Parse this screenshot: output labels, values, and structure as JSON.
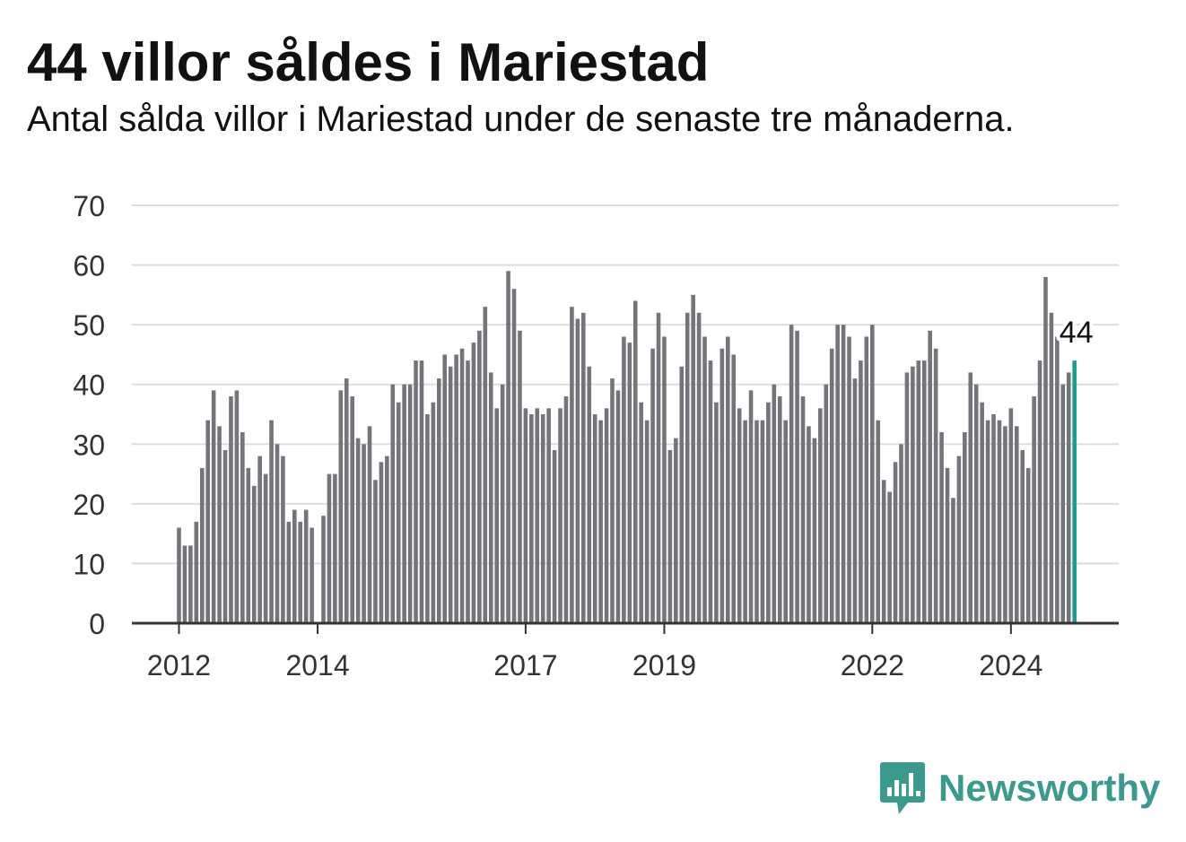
{
  "header": {
    "title": "44 villor såldes i Mariestad",
    "subtitle": "Antal sålda villor i Mariestad under de senaste tre månaderna."
  },
  "brand": {
    "name": "Newsworthy",
    "icon": "newsworthy-bar-chart-icon",
    "color": "#3a9a8e"
  },
  "colors": {
    "bar": "#75747a",
    "highlight": "#1a9e8f",
    "grid": "#dddddd",
    "axis": "#333333"
  },
  "chart_data": {
    "type": "bar",
    "title": "44 villor såldes i Mariestad",
    "subtitle": "Antal sålda villor i Mariestad under de senaste tre månaderna.",
    "ylim": [
      0,
      70
    ],
    "yticks": [
      0,
      10,
      20,
      30,
      40,
      50,
      60,
      70
    ],
    "xticks": [
      "2012",
      "2014",
      "2017",
      "2019",
      "2022",
      "2024"
    ],
    "xtick_month_index": [
      0,
      24,
      60,
      84,
      120,
      144
    ],
    "start": "2012-01",
    "end": "2024-12",
    "grid": true,
    "legend": "none",
    "highlight_label": "44",
    "values": [
      16,
      13,
      13,
      17,
      26,
      34,
      39,
      33,
      29,
      38,
      39,
      32,
      26,
      23,
      28,
      25,
      34,
      30,
      28,
      17,
      19,
      17,
      19,
      16,
      0,
      18,
      25,
      25,
      39,
      41,
      38,
      31,
      30,
      33,
      24,
      27,
      28,
      40,
      37,
      40,
      40,
      44,
      44,
      35,
      37,
      41,
      45,
      43,
      45,
      46,
      44,
      47,
      49,
      53,
      42,
      36,
      40,
      59,
      56,
      49,
      36,
      35,
      36,
      35,
      36,
      29,
      36,
      38,
      53,
      51,
      52,
      43,
      35,
      34,
      36,
      41,
      39,
      48,
      47,
      54,
      37,
      34,
      46,
      52,
      48,
      29,
      31,
      43,
      52,
      55,
      52,
      48,
      44,
      37,
      46,
      48,
      45,
      36,
      34,
      39,
      34,
      34,
      37,
      40,
      38,
      34,
      50,
      49,
      38,
      33,
      31,
      36,
      40,
      46,
      50,
      50,
      48,
      41,
      44,
      48,
      50,
      34,
      24,
      22,
      27,
      30,
      42,
      43,
      44,
      44,
      49,
      46,
      32,
      26,
      21,
      28,
      32,
      42,
      40,
      37,
      34,
      35,
      34,
      33,
      36,
      33,
      29,
      26,
      38,
      44,
      58,
      52,
      48,
      40,
      42,
      44
    ]
  }
}
